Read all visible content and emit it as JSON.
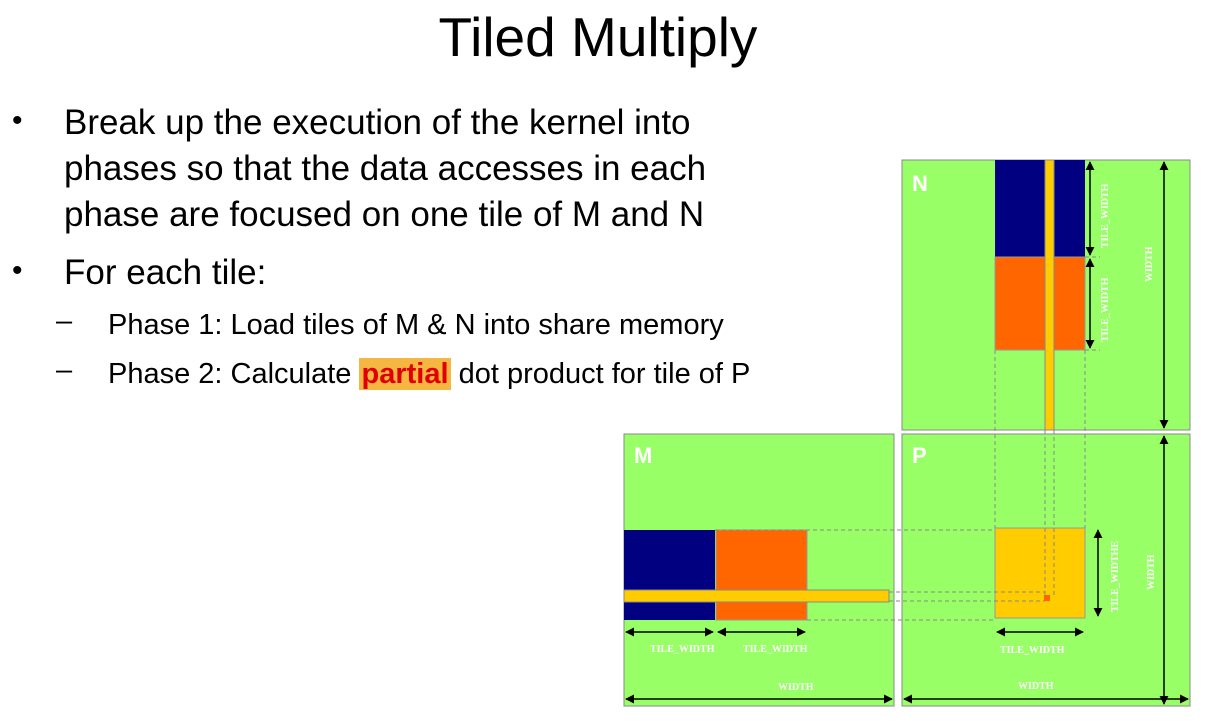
{
  "title": "Tiled Multiply",
  "bullets": [
    {
      "marker": "•",
      "lines": [
        "Break up the execution of the kernel into",
        "phases so that the data accesses in each",
        "phase are focused on one tile of M and N"
      ]
    },
    {
      "marker": "•",
      "text": "For each tile:"
    }
  ],
  "sub_bullets": [
    {
      "marker": "–",
      "text": "Phase 1: Load tiles of M & N into share memory"
    },
    {
      "marker": "–",
      "before": "Phase 2: Calculate ",
      "highlight": "partial",
      "after": " dot product for tile of P"
    }
  ],
  "diagram": {
    "matrix_labels": {
      "n": "N",
      "m": "M",
      "p": "P"
    },
    "labels": {
      "tile_width": "TILE_WIDTH",
      "tile_widthe": "TILE_WIDTHE",
      "width": "WIDTH"
    },
    "colors": {
      "matrix": "#99ff66",
      "tile_first": "#000080",
      "tile_second": "#ff6600",
      "strip": "#ffcc00",
      "p_tile": "#ffcc00",
      "highlight_bg": "#f5b642",
      "highlight_text": "#e00000"
    }
  }
}
